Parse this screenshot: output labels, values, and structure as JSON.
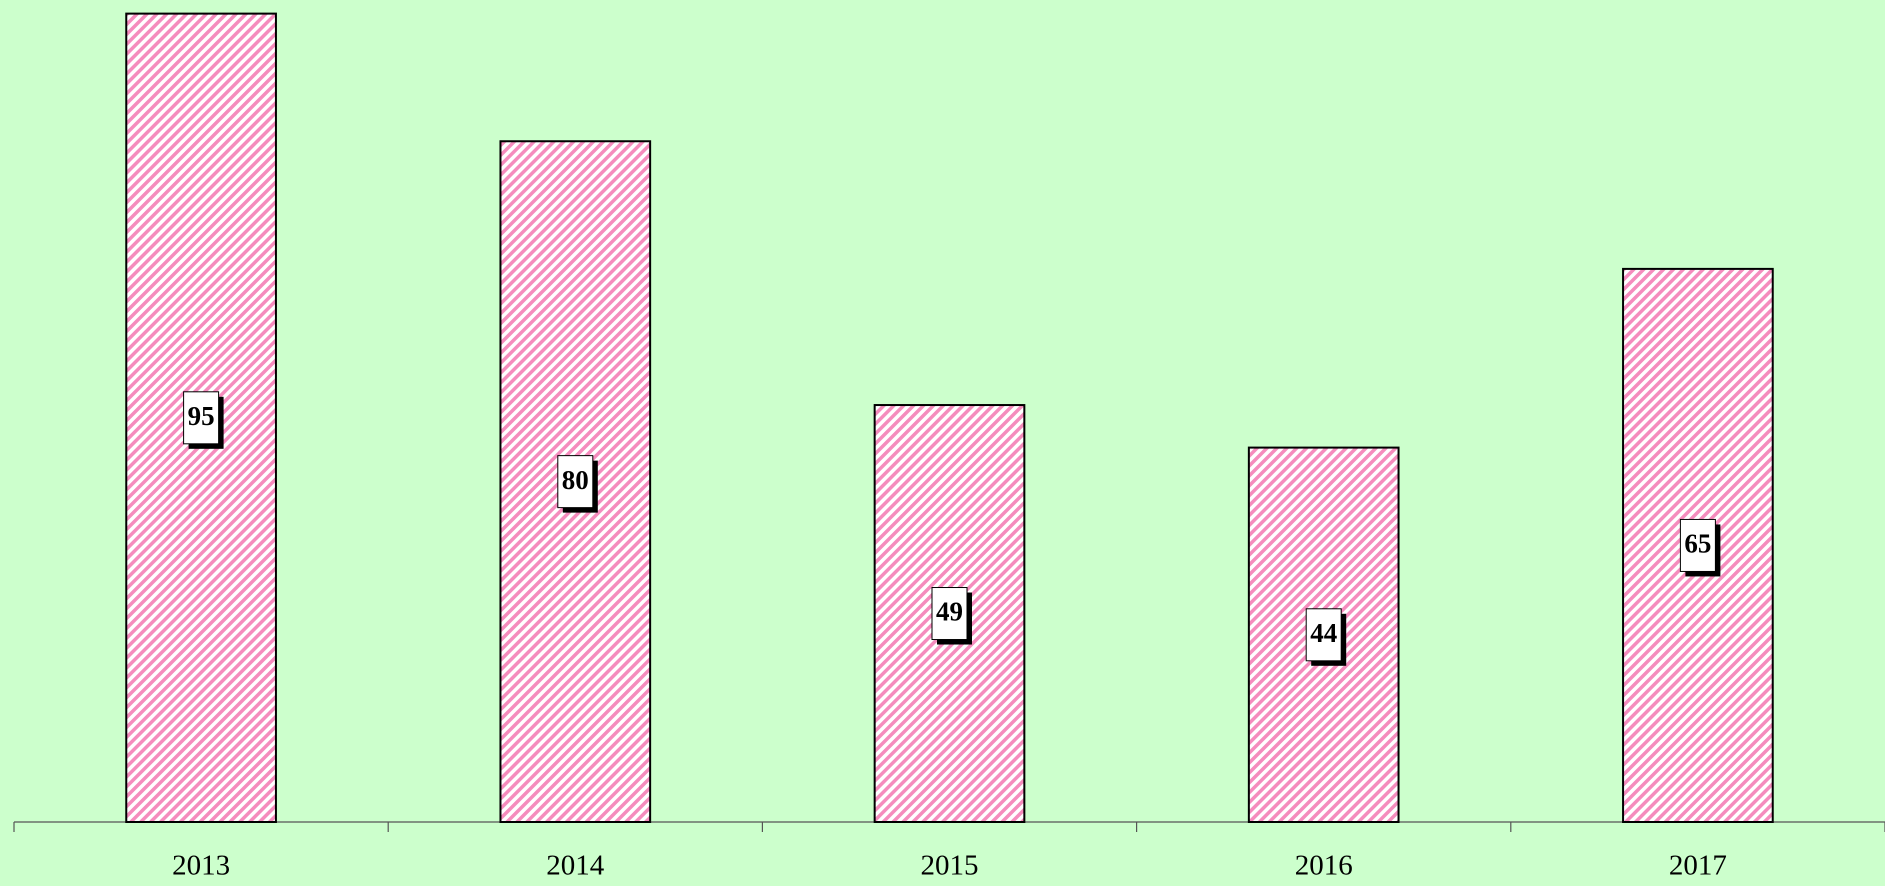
{
  "chart_data": {
    "type": "bar",
    "categories": [
      "2013",
      "2014",
      "2015",
      "2016",
      "2017"
    ],
    "values": [
      95,
      80,
      49,
      44,
      65
    ],
    "color": "#f58cbd",
    "ylim": [
      0,
      96.6
    ]
  }
}
